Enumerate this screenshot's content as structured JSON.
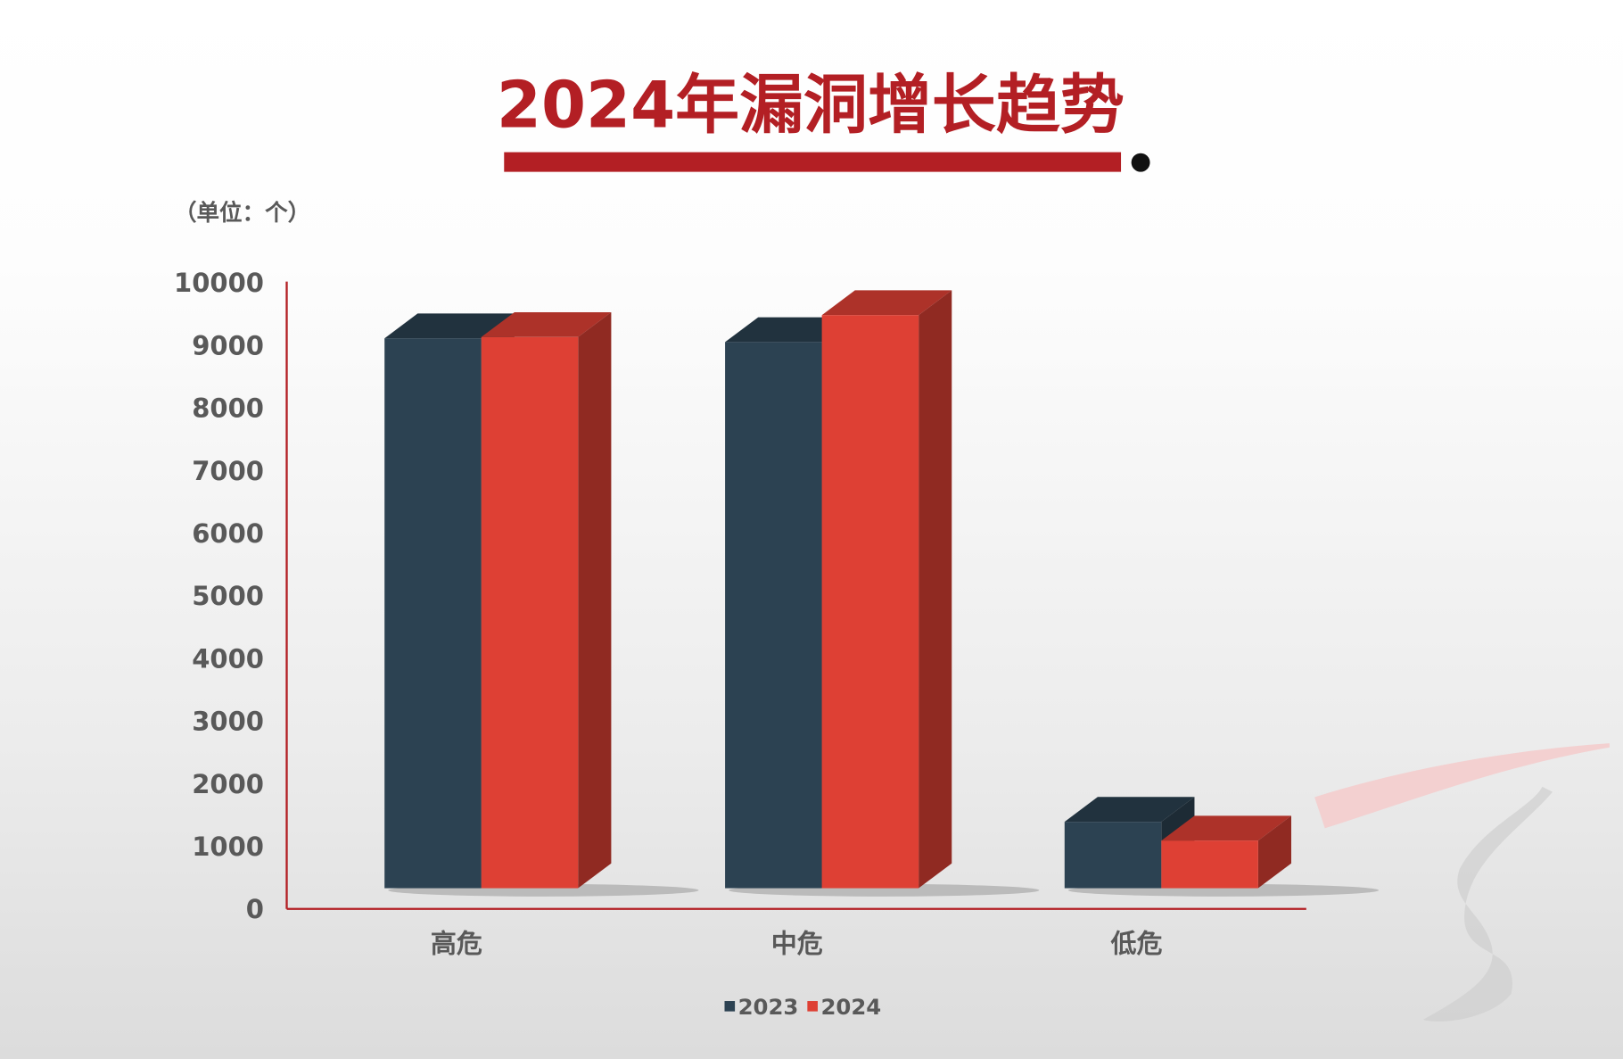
{
  "chart_data": {
    "type": "bar",
    "style": "3d-clustered-column",
    "title": "2024年漏洞增长趋势",
    "unit_label": "（单位：个）",
    "categories": [
      "高危",
      "中危",
      "低危"
    ],
    "series": [
      {
        "name": "2023",
        "color": "#2c4252",
        "values": [
          8780,
          8720,
          1060
        ]
      },
      {
        "name": "2024",
        "color": "#de4034",
        "values": [
          8800,
          9150,
          760
        ]
      }
    ],
    "ylim": [
      0,
      10000
    ],
    "yticks": [
      "0",
      "1000",
      "2000",
      "3000",
      "4000",
      "5000",
      "6000",
      "7000",
      "8000",
      "9000",
      "10000"
    ],
    "grid": false,
    "legend_position": "bottom",
    "axis_color": "#b31f24",
    "title_color": "#b31f24"
  }
}
